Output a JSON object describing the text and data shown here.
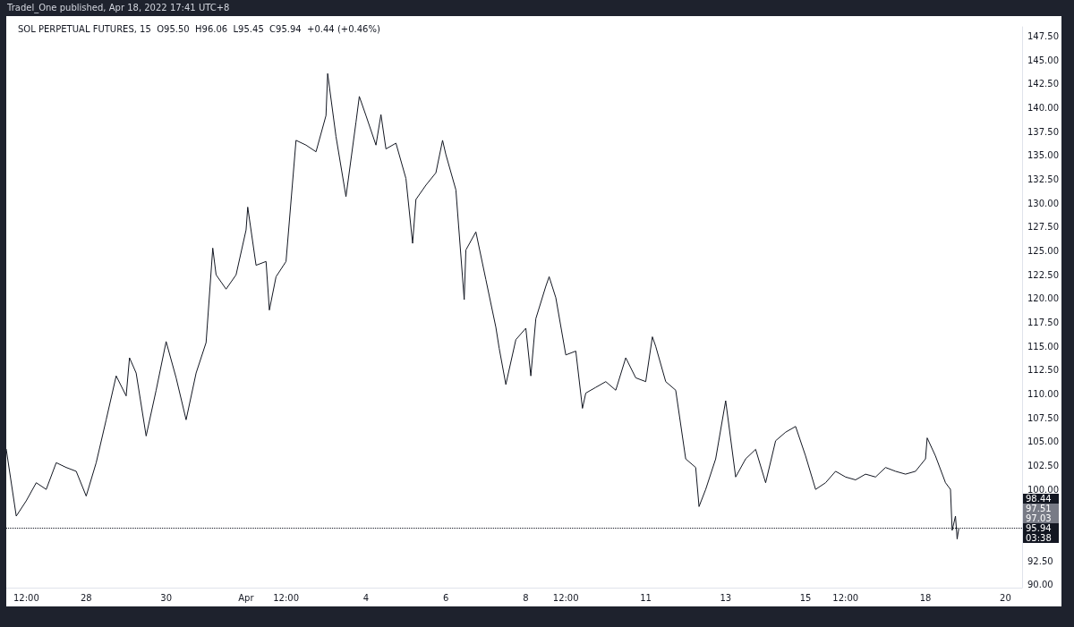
{
  "chart_data": {
    "type": "line",
    "title": "SOL PERPETUAL FUTURES, 15  O95.50  H96.06  L95.45  C95.94  +0.44 (+0.46%)",
    "annotations": [
      "Tradel_One published, Apr 18, 2022 17:41 UTC+8",
      "98.44",
      "97.51",
      "97.03",
      "03:38"
    ],
    "x": [
      "2022-03-26T00:00",
      "2022-03-26T06:00",
      "2022-03-26T12:00",
      "2022-03-26T18:00",
      "2022-03-27T00:00",
      "2022-03-27T06:00",
      "2022-03-27T12:00",
      "2022-03-27T18:00",
      "2022-03-28T00:00",
      "2022-03-28T06:00",
      "2022-03-28T12:00",
      "2022-03-28T18:00",
      "2022-03-29T00:00",
      "2022-03-29T02:00",
      "2022-03-29T06:00",
      "2022-03-29T12:00",
      "2022-03-29T18:00",
      "2022-03-30T00:00",
      "2022-03-30T06:00",
      "2022-03-30T12:00",
      "2022-03-30T18:00",
      "2022-03-31T00:00",
      "2022-03-31T04:00",
      "2022-03-31T06:00",
      "2022-03-31T12:00",
      "2022-03-31T18:00",
      "2022-04-01T00:00",
      "2022-04-01T01:00",
      "2022-04-01T06:00",
      "2022-04-01T12:00",
      "2022-04-01T14:00",
      "2022-04-01T18:00",
      "2022-04-02T00:00",
      "2022-04-02T06:00",
      "2022-04-02T12:00",
      "2022-04-02T18:00",
      "2022-04-03T00:00",
      "2022-04-03T01:00",
      "2022-04-03T06:00",
      "2022-04-03T12:00",
      "2022-04-03T18:00",
      "2022-04-03T20:00",
      "2022-04-04T00:00",
      "2022-04-04T06:00",
      "2022-04-04T09:00",
      "2022-04-04T12:00",
      "2022-04-04T18:00",
      "2022-04-05T00:00",
      "2022-04-05T04:00",
      "2022-04-05T06:00",
      "2022-04-05T12:00",
      "2022-04-05T18:00",
      "2022-04-05T22:00",
      "2022-04-06T00:00",
      "2022-04-06T06:00",
      "2022-04-06T11:00",
      "2022-04-06T12:00",
      "2022-04-06T18:00",
      "2022-04-07T00:00",
      "2022-04-07T06:00",
      "2022-04-07T08:00",
      "2022-04-07T12:00",
      "2022-04-07T18:00",
      "2022-04-08T00:00",
      "2022-04-08T03:00",
      "2022-04-08T06:00",
      "2022-04-08T12:00",
      "2022-04-08T14:00",
      "2022-04-08T18:00",
      "2022-04-09T00:00",
      "2022-04-09T06:00",
      "2022-04-09T10:00",
      "2022-04-09T12:00",
      "2022-04-09T18:00",
      "2022-04-10T00:00",
      "2022-04-10T06:00",
      "2022-04-10T12:00",
      "2022-04-10T18:00",
      "2022-04-11T00:00",
      "2022-04-11T04:00",
      "2022-04-11T06:00",
      "2022-04-11T12:00",
      "2022-04-11T18:00",
      "2022-04-12T00:00",
      "2022-04-12T06:00",
      "2022-04-12T08:00",
      "2022-04-12T12:00",
      "2022-04-12T18:00",
      "2022-04-13T00:00",
      "2022-04-13T06:00",
      "2022-04-13T12:00",
      "2022-04-13T18:00",
      "2022-04-14T00:00",
      "2022-04-14T06:00",
      "2022-04-14T12:00",
      "2022-04-14T18:00",
      "2022-04-15T00:00",
      "2022-04-15T06:00",
      "2022-04-15T12:00",
      "2022-04-15T18:00",
      "2022-04-16T00:00",
      "2022-04-16T06:00",
      "2022-04-16T12:00",
      "2022-04-16T18:00",
      "2022-04-17T00:00",
      "2022-04-17T06:00",
      "2022-04-17T12:00",
      "2022-04-17T18:00",
      "2022-04-18T00:00",
      "2022-04-18T01:00",
      "2022-04-18T06:00",
      "2022-04-18T12:00",
      "2022-04-18T15:00",
      "2022-04-18T16:00",
      "2022-04-18T18:00",
      "2022-04-18T19:00",
      "2022-04-18T20:00"
    ],
    "series": [
      {
        "color": "#131722",
        "values": [
          104.2,
          97.2,
          98.8,
          100.7,
          100.0,
          102.8,
          102.3,
          101.9,
          99.3,
          102.8,
          107.3,
          111.9,
          109.8,
          113.8,
          112.2,
          105.6,
          110.4,
          115.5,
          111.7,
          107.3,
          112.2,
          115.4,
          125.3,
          122.5,
          121.0,
          122.5,
          127.2,
          129.6,
          123.5,
          123.9,
          118.8,
          122.3,
          123.9,
          136.6,
          136.1,
          135.4,
          139.2,
          143.6,
          137.0,
          130.7,
          138.5,
          141.2,
          139.2,
          136.1,
          139.3,
          135.7,
          136.3,
          132.6,
          125.8,
          130.4,
          131.9,
          133.2,
          136.6,
          135.1,
          131.4,
          119.9,
          125.1,
          127.0,
          122.0,
          117.0,
          114.8,
          111.0,
          115.7,
          116.9,
          111.9,
          117.9,
          121.3,
          122.3,
          120.1,
          114.1,
          114.5,
          108.5,
          110.1,
          110.7,
          111.3,
          110.4,
          113.8,
          111.7,
          111.3,
          116.0,
          115.0,
          111.3,
          110.4,
          103.2,
          102.3,
          98.2,
          100.0,
          103.2,
          109.3,
          101.3,
          103.2,
          104.2,
          100.7,
          105.1,
          106.0,
          106.6,
          103.5,
          100.0,
          100.7,
          101.9,
          101.3,
          101.0,
          101.6,
          101.3,
          102.3,
          101.9,
          101.6,
          101.9,
          103.2,
          105.4,
          103.5,
          100.7,
          100.0,
          95.7,
          97.2,
          94.8,
          95.9
        ]
      }
    ],
    "xlim": [
      "2022-03-26T00:00",
      "2022-04-20T10:00"
    ],
    "xticks": [
      {
        "value": "2022-03-26T12:00",
        "label": "12:00"
      },
      {
        "value": "2022-03-28T00:00",
        "label": "28"
      },
      {
        "value": "2022-03-30T00:00",
        "label": "30"
      },
      {
        "value": "2022-04-01T00:00",
        "label": "Apr"
      },
      {
        "value": "2022-04-02T00:00",
        "label": "12:00"
      },
      {
        "value": "2022-04-04T00:00",
        "label": "4"
      },
      {
        "value": "2022-04-06T00:00",
        "label": "6"
      },
      {
        "value": "2022-04-08T00:00",
        "label": "8"
      },
      {
        "value": "2022-04-09T00:00",
        "label": "12:00"
      },
      {
        "value": "2022-04-11T00:00",
        "label": "11"
      },
      {
        "value": "2022-04-13T00:00",
        "label": "13"
      },
      {
        "value": "2022-04-15T00:00",
        "label": "15"
      },
      {
        "value": "2022-04-16T00:00",
        "label": "12:00"
      },
      {
        "value": "2022-04-18T00:00",
        "label": "18"
      },
      {
        "value": "2022-04-20T00:00",
        "label": "20"
      }
    ],
    "ylim": [
      89.7,
      148.5
    ],
    "yticks": [
      {
        "value": 90,
        "label": "90.00"
      },
      {
        "value": 92.5,
        "label": "92.50"
      },
      {
        "value": 100,
        "label": "100.00"
      },
      {
        "value": 102.5,
        "label": "102.50"
      },
      {
        "value": 105,
        "label": "105.00"
      },
      {
        "value": 107.5,
        "label": "107.50"
      },
      {
        "value": 110,
        "label": "110.00"
      },
      {
        "value": 112.5,
        "label": "112.50"
      },
      {
        "value": 115,
        "label": "115.00"
      },
      {
        "value": 117.5,
        "label": "117.50"
      },
      {
        "value": 120,
        "label": "120.00"
      },
      {
        "value": 122.5,
        "label": "122.50"
      },
      {
        "value": 125,
        "label": "125.00"
      },
      {
        "value": 127.5,
        "label": "127.50"
      },
      {
        "value": 130,
        "label": "130.00"
      },
      {
        "value": 132.5,
        "label": "132.50"
      },
      {
        "value": 135,
        "label": "135.00"
      },
      {
        "value": 137.5,
        "label": "137.50"
      },
      {
        "value": 140,
        "label": "140.00"
      },
      {
        "value": 142.5,
        "label": "142.50"
      },
      {
        "value": 145,
        "label": "145.00"
      },
      {
        "value": 147.5,
        "label": "147.50"
      }
    ],
    "ref_lines": [
      {
        "axis": "y",
        "value": 95.94,
        "label": "95.94",
        "color": "#131722",
        "line_style": "dotted"
      }
    ],
    "grid": false,
    "marker": "none",
    "line_style": "solid"
  }
}
